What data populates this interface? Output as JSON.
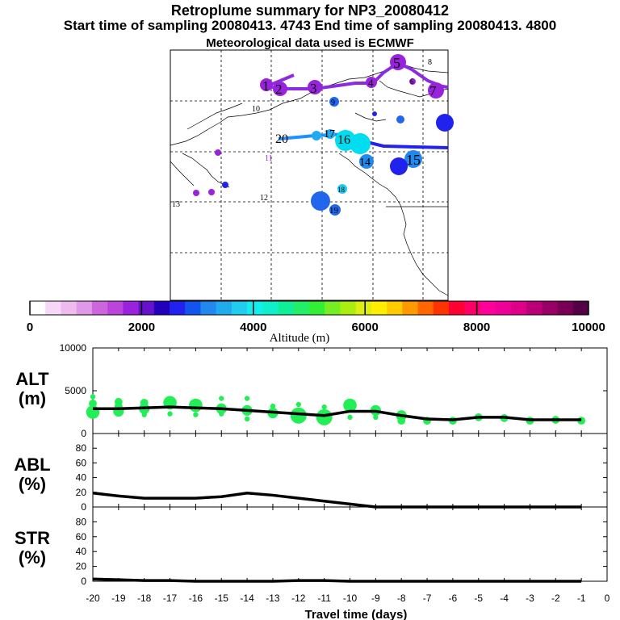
{
  "header": {
    "title": "Retroplume summary for NP3_20080412",
    "sampling": "Start time of sampling 20080413.  4743     End time of sampling 20080413.  4800",
    "met": "Meteorological data used is ECMWF"
  },
  "colors": {
    "track_purple": "#8a2be2",
    "track_cyan": "#00aaff",
    "track_blue": "#2222ee",
    "alt_points": "#22ee55",
    "line": "#000000"
  },
  "map": {
    "labels": [
      {
        "text": "1",
        "color": "#9922dd"
      },
      {
        "text": "2",
        "color": "#9922dd"
      },
      {
        "text": "3",
        "color": "#9922dd"
      },
      {
        "text": "4",
        "color": "#9922dd"
      },
      {
        "text": "5",
        "color": "#9922dd"
      },
      {
        "text": "6",
        "color": "#9922dd"
      },
      {
        "text": "7",
        "color": "#9922dd"
      },
      {
        "text": "8",
        "color": "#9922dd"
      },
      {
        "text": "9",
        "color": "#2266ee"
      },
      {
        "text": "10",
        "color": "#22aaee"
      },
      {
        "text": "11",
        "color": "#9922dd"
      },
      {
        "text": "12",
        "color": "#9922dd"
      },
      {
        "text": "13",
        "color": "#9922dd"
      },
      {
        "text": "14",
        "color": "#9922dd"
      },
      {
        "text": "15",
        "color": "#9922dd"
      },
      {
        "text": "16",
        "color": "#22aaee"
      },
      {
        "text": "17",
        "color": "#22aaee"
      },
      {
        "text": "18",
        "color": "#22aaee"
      },
      {
        "text": "19",
        "color": "#2266ee"
      },
      {
        "text": "20",
        "color": "#2266ee"
      }
    ]
  },
  "colorbar": {
    "label": "Altitude (m)",
    "min": 0,
    "max": 10000,
    "tick_labels": [
      "0",
      "2000",
      "4000",
      "6000",
      "8000",
      "10000"
    ],
    "colors": [
      "#ffffff",
      "#f6d8f6",
      "#eebbee",
      "#e099e8",
      "#cc66dd",
      "#bb44dd",
      "#9922dd",
      "#6611cc",
      "#2200bb",
      "#2222ee",
      "#1155ee",
      "#2288ee",
      "#22aaee",
      "#22ccee",
      "#11eeee",
      "#11eecc",
      "#11ee99",
      "#22ee66",
      "#33ee33",
      "#77ee22",
      "#aaee11",
      "#ddee11",
      "#ffee00",
      "#ffcc00",
      "#ff9900",
      "#ff6600",
      "#ff3300",
      "#ff0033",
      "#ff0066",
      "#ff0099",
      "#ee0099",
      "#dd0088",
      "#bb0077",
      "#990066",
      "#770055",
      "#550044"
    ]
  },
  "chart_data": [
    {
      "type": "line",
      "panel": "ALT",
      "ylabel": "ALT\n(m)",
      "ylabel_line1": "ALT",
      "ylabel_line2": "(m)",
      "ylim": [
        0,
        10000
      ],
      "ytick_labels": [
        "0",
        "5000",
        "10000"
      ],
      "x": [
        -20,
        -19,
        -18,
        -17,
        -16,
        -15,
        -14,
        -13,
        -12,
        -11,
        -10,
        -9,
        -8,
        -7,
        -6,
        -5,
        -4,
        -3,
        -2,
        -1
      ],
      "values": [
        2900,
        2900,
        3000,
        3100,
        3000,
        2900,
        2700,
        2500,
        2300,
        2100,
        2600,
        2600,
        2100,
        1700,
        1600,
        1900,
        1900,
        1600,
        1600,
        1600
      ],
      "scatter": {
        "x": [
          -20,
          -20,
          -20,
          -19,
          -19,
          -19,
          -18,
          -18,
          -18,
          -17,
          -17,
          -16,
          -16,
          -15,
          -15,
          -15,
          -14,
          -14,
          -14,
          -13,
          -13,
          -12,
          -12,
          -11,
          -11,
          -10,
          -10,
          -9,
          -9,
          -8,
          -8,
          -7,
          -6,
          -5,
          -4,
          -3,
          -2,
          -1
        ],
        "y": [
          2500,
          3500,
          4300,
          2600,
          3700,
          3200,
          2900,
          3600,
          2200,
          3600,
          2300,
          3300,
          2200,
          2900,
          4100,
          2300,
          2700,
          4100,
          1700,
          2400,
          3200,
          2100,
          3400,
          1900,
          3100,
          3300,
          1900,
          2700,
          1900,
          2100,
          1500,
          1500,
          1500,
          1900,
          1800,
          1500,
          1600,
          1500
        ],
        "size": [
          4,
          2,
          1,
          3,
          2,
          2,
          3,
          2,
          1,
          4,
          1,
          4,
          1,
          3,
          1,
          1,
          3,
          1,
          1,
          3,
          1,
          5,
          1,
          5,
          1,
          4,
          1,
          3,
          1,
          3,
          2,
          2,
          2,
          2,
          2,
          2,
          2,
          2
        ]
      }
    },
    {
      "type": "line",
      "panel": "ABL",
      "ylabel_line1": "ABL",
      "ylabel_line2": "(%)",
      "ylim": [
        0,
        100
      ],
      "ytick_labels": [
        "0",
        "20",
        "40",
        "60",
        "80"
      ],
      "x": [
        -20,
        -19,
        -18,
        -17,
        -16,
        -15,
        -14,
        -13,
        -12,
        -11,
        -10,
        -9,
        -8,
        -7,
        -6,
        -5,
        -4,
        -3,
        -2,
        -1
      ],
      "values": [
        19,
        15,
        12,
        12,
        12,
        14,
        19,
        16,
        12,
        8,
        4,
        0,
        0,
        0,
        0,
        0,
        0,
        0,
        0,
        0
      ]
    },
    {
      "type": "line",
      "panel": "STR",
      "ylabel_line1": "STR",
      "ylabel_line2": "(%)",
      "ylim": [
        0,
        100
      ],
      "ytick_labels": [
        "0",
        "20",
        "40",
        "60",
        "80"
      ],
      "x": [
        -20,
        -19,
        -18,
        -17,
        -16,
        -15,
        -14,
        -13,
        -12,
        -11,
        -10,
        -9,
        -8,
        -7,
        -6,
        -5,
        -4,
        -3,
        -2,
        -1
      ],
      "values": [
        3,
        2,
        1,
        1,
        0,
        0,
        0,
        0,
        1,
        1,
        0,
        0,
        0,
        0,
        0,
        0,
        0,
        0,
        0,
        0
      ]
    }
  ],
  "xaxis": {
    "label": "Travel time (days)",
    "tick_labels": [
      "-20",
      "-19",
      "-18",
      "-17",
      "-16",
      "-15",
      "-14",
      "-13",
      "-12",
      "-11",
      "-10",
      "-9",
      "-8",
      "-7",
      "-6",
      "-5",
      "-4",
      "-3",
      "-2",
      "-1",
      "0"
    ]
  }
}
